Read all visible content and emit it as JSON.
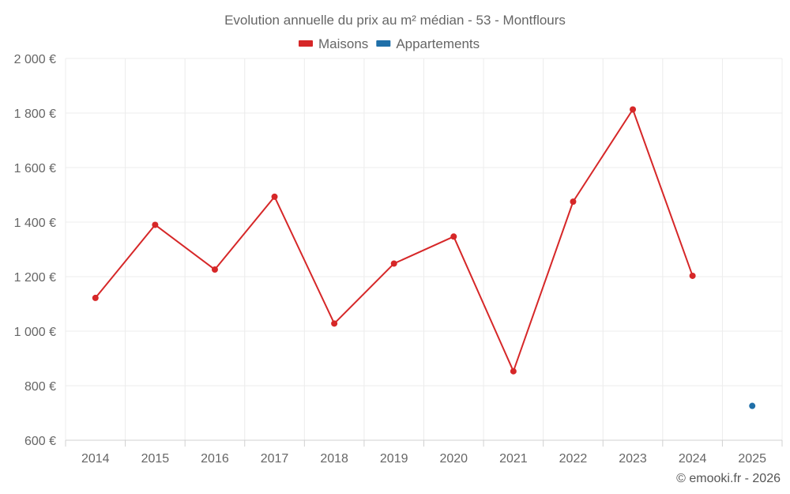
{
  "chart_data": {
    "type": "line",
    "title": "Evolution annuelle du prix au m² médian - 53 - Montflours",
    "categories": [
      "2014",
      "2015",
      "2016",
      "2017",
      "2018",
      "2019",
      "2020",
      "2021",
      "2022",
      "2023",
      "2024",
      "2025"
    ],
    "series": [
      {
        "name": "Maisons",
        "color": "#d62728",
        "values": [
          1122,
          1390,
          1226,
          1493,
          1028,
          1248,
          1347,
          853,
          1475,
          1813,
          1203,
          null
        ]
      },
      {
        "name": "Appartements",
        "color": "#1f6fa8",
        "values": [
          null,
          null,
          null,
          null,
          null,
          null,
          null,
          null,
          null,
          null,
          null,
          726
        ]
      }
    ],
    "ylim": [
      600,
      2000
    ],
    "yticks": [
      600,
      800,
      1000,
      1200,
      1400,
      1600,
      1800,
      2000
    ],
    "ytick_labels": [
      "600 €",
      "800 €",
      "1 000 €",
      "1 200 €",
      "1 400 €",
      "1 600 €",
      "1 800 €",
      "2 000 €"
    ],
    "xlabel": "",
    "ylabel": "",
    "grid": true,
    "legend_position": "top-center"
  },
  "credit": "© emooki.fr - 2026"
}
